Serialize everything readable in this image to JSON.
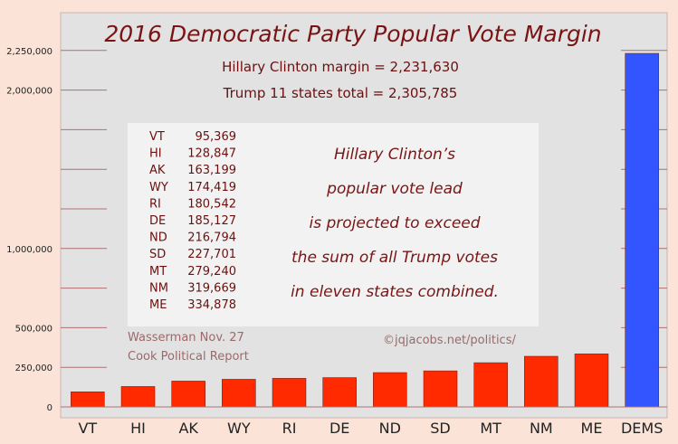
{
  "chart_data": {
    "type": "bar",
    "title": "2016 Democratic Party Popular Vote Margin",
    "subtitle_lines": [
      "Hillary Clinton margin = 2,231,630",
      "Trump 11 states total = 2,305,785"
    ],
    "categories": [
      "VT",
      "HI",
      "AK",
      "WY",
      "RI",
      "DE",
      "ND",
      "SD",
      "MT",
      "NM",
      "ME",
      "DEMS"
    ],
    "values": [
      95369,
      128847,
      163199,
      174419,
      180542,
      185127,
      216794,
      227701,
      279240,
      319669,
      334878,
      2231630
    ],
    "bar_colors": [
      "#ff2a00",
      "#ff2a00",
      "#ff2a00",
      "#ff2a00",
      "#ff2a00",
      "#ff2a00",
      "#ff2a00",
      "#ff2a00",
      "#ff2a00",
      "#ff2a00",
      "#ff2a00",
      "#3355ff"
    ],
    "ylim": [
      0,
      2500000
    ],
    "y_ticks": [
      0,
      250000,
      500000,
      1000000,
      2000000,
      2250000
    ],
    "y_tick_labels": [
      "0",
      "250,000",
      "500,000",
      "1,000,000",
      "2,000,000",
      "2,250,000"
    ],
    "minor_gridlines_every": 250000,
    "table": [
      {
        "state": "VT",
        "votes": "95,369"
      },
      {
        "state": "HI",
        "votes": "128,847"
      },
      {
        "state": "AK",
        "votes": "163,199"
      },
      {
        "state": "WY",
        "votes": "174,419"
      },
      {
        "state": "RI",
        "votes": "180,542"
      },
      {
        "state": "DE",
        "votes": "185,127"
      },
      {
        "state": "ND",
        "votes": "216,794"
      },
      {
        "state": "SD",
        "votes": "227,701"
      },
      {
        "state": "MT",
        "votes": "279,240"
      },
      {
        "state": "NM",
        "votes": "319,669"
      },
      {
        "state": "ME",
        "votes": "334,878"
      }
    ],
    "note_lines": [
      "Hillary Clinton’s",
      "popular vote lead",
      "is projected to exceed",
      "the sum of all Trump votes",
      "in eleven states combined."
    ],
    "source_lines": [
      "Wasserman Nov. 27",
      "Cook Political Report"
    ],
    "credit": "©jqjacobs.net/politics/",
    "colors": {
      "page_background": "#fbe4d7",
      "plot_background": "#e2e2e2",
      "gridline": "#b07070",
      "table_panel": "#f2f2f2",
      "text_dark_red": "#7a1414"
    }
  }
}
